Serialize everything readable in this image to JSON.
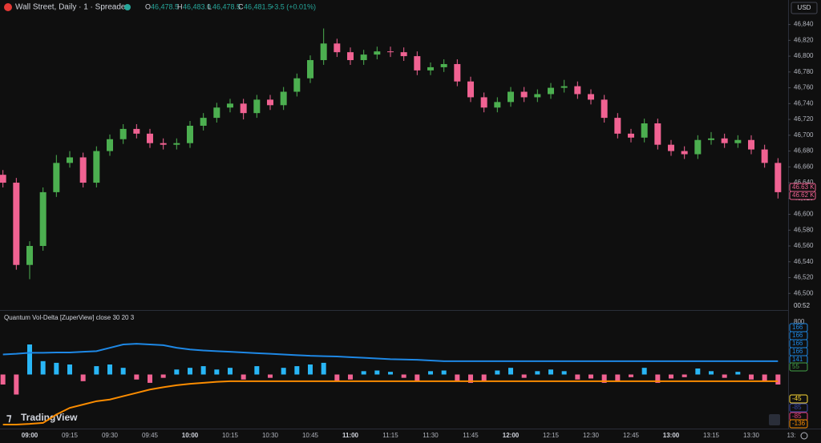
{
  "header": {
    "symbol": "Wall Street, Daily · 1 · Spreadex",
    "o_label": "O",
    "o": "46,478.5",
    "h_label": "H",
    "h": "46,483.0",
    "l_label": "L",
    "l": "46,478.5",
    "c_label": "C",
    "c": "46,481.5",
    "change": "+3.5 (+0.01%)"
  },
  "currency": "USD",
  "countdown": "00:52",
  "brand": "TradingView",
  "price_badges": [
    "46.63 K",
    "46.62 K"
  ],
  "indicator_title": "Quantum Vol-Delta [ZuperView] close 30 20 3",
  "chart_data": [
    {
      "type": "candlestick",
      "up_color": "#4caf50",
      "down_color": "#f06292",
      "ylim": [
        46479,
        46871
      ],
      "yticks": [
        {
          "value": 46840,
          "label": "46,840"
        },
        {
          "value": 46820,
          "label": "46,820"
        },
        {
          "value": 46800,
          "label": "46,800"
        },
        {
          "value": 46780,
          "label": "46,780"
        },
        {
          "value": 46760,
          "label": "46,760"
        },
        {
          "value": 46740,
          "label": "46,740"
        },
        {
          "value": 46720,
          "label": "46,720"
        },
        {
          "value": 46700,
          "label": "46,700"
        },
        {
          "value": 46680,
          "label": "46,680"
        },
        {
          "value": 46660,
          "label": "46,660"
        },
        {
          "value": 46640,
          "label": "46,640"
        },
        {
          "value": 46620,
          "label": "46,620"
        },
        {
          "value": 46600,
          "label": "46,600"
        },
        {
          "value": 46580,
          "label": "46,580"
        },
        {
          "value": 46560,
          "label": "46,560"
        },
        {
          "value": 46540,
          "label": "46,540"
        },
        {
          "value": 46520,
          "label": "46,520"
        },
        {
          "value": 46500,
          "label": "46,500"
        }
      ],
      "xticks": [
        "09:00",
        "09:15",
        "09:30",
        "09:45",
        "10:00",
        "10:15",
        "10:30",
        "10:45",
        "11:00",
        "11:15",
        "11:30",
        "11:45",
        "12:00",
        "12:15",
        "12:30",
        "12:45",
        "13:00",
        "13:15",
        "13:30",
        "13:"
      ],
      "open": [
        46650,
        46640,
        46536,
        46560,
        46628,
        46665,
        46672,
        46640,
        46680,
        46695,
        46708,
        46702,
        46690,
        46688,
        46690,
        46712,
        46722,
        46735,
        46740,
        46728,
        46745,
        46738,
        46755,
        46772,
        46795,
        46816,
        46805,
        46795,
        46802,
        46806,
        46805,
        46800,
        46782,
        46786,
        46790,
        46768,
        46748,
        46735,
        46742,
        46755,
        46748,
        46752,
        46760,
        46762,
        46752,
        46745,
        46722,
        46702,
        46697,
        46715,
        46688,
        46680,
        46676,
        46694,
        46696,
        46690,
        46694,
        46682,
        46665
      ],
      "high": [
        46656,
        46646,
        46566,
        46634,
        46675,
        46680,
        46678,
        46686,
        46701,
        46714,
        46714,
        46708,
        46696,
        46696,
        46718,
        46728,
        46741,
        46746,
        46746,
        46751,
        46751,
        46761,
        46778,
        46801,
        46835,
        46822,
        46811,
        46808,
        46812,
        46812,
        46811,
        46806,
        46792,
        46796,
        46796,
        46774,
        46754,
        46748,
        46761,
        46761,
        46758,
        46766,
        46770,
        46768,
        46758,
        46751,
        46728,
        46708,
        46721,
        46721,
        46694,
        46686,
        46700,
        46704,
        46702,
        46700,
        46700,
        46688,
        46671
      ],
      "low": [
        46634,
        46530,
        46518,
        46554,
        46622,
        46659,
        46634,
        46634,
        46674,
        46689,
        46696,
        46684,
        46682,
        46682,
        46684,
        46706,
        46716,
        46729,
        46720,
        46722,
        46732,
        46732,
        46749,
        46766,
        46789,
        46799,
        46789,
        46789,
        46796,
        46799,
        46794,
        46776,
        46776,
        46780,
        46762,
        46742,
        46729,
        46729,
        46736,
        46742,
        46742,
        46746,
        46754,
        46746,
        46739,
        46716,
        46696,
        46691,
        46691,
        46682,
        46674,
        46670,
        46670,
        46688,
        46684,
        46684,
        46676,
        46659,
        46620
      ],
      "close": [
        46640,
        46536,
        46560,
        46628,
        46665,
        46672,
        46640,
        46680,
        46695,
        46708,
        46702,
        46690,
        46688,
        46690,
        46712,
        46722,
        46735,
        46740,
        46728,
        46745,
        46738,
        46755,
        46772,
        46795,
        46816,
        46805,
        46795,
        46802,
        46806,
        46805,
        46800,
        46782,
        46786,
        46790,
        46768,
        46748,
        46735,
        46742,
        46755,
        46748,
        46752,
        46760,
        46762,
        46752,
        46745,
        46722,
        46702,
        46697,
        46715,
        46688,
        46680,
        46676,
        46694,
        46696,
        46690,
        46694,
        46682,
        46665,
        46628
      ]
    },
    {
      "type": "histogram-bands",
      "ylim": [
        -150,
        150
      ],
      "axis_top_label": 800,
      "pos_color": "#29b6f6",
      "neg_color": "#f06292",
      "series": [
        {
          "kind": "bars",
          "values": [
            -30,
            -60,
            90,
            40,
            35,
            30,
            -20,
            25,
            30,
            20,
            -15,
            -25,
            -10,
            15,
            20,
            25,
            15,
            20,
            -15,
            25,
            -10,
            20,
            25,
            30,
            35,
            -20,
            -15,
            10,
            12,
            8,
            -10,
            -20,
            10,
            12,
            -20,
            -25,
            -18,
            12,
            20,
            -10,
            10,
            15,
            10,
            -15,
            -12,
            -25,
            -22,
            -8,
            20,
            -25,
            -12,
            -8,
            18,
            10,
            -10,
            8,
            -15,
            -20,
            -30
          ]
        },
        {
          "kind": "line",
          "color": "#1e88e5",
          "values": [
            60,
            62,
            65,
            65,
            66,
            66,
            68,
            70,
            80,
            90,
            92,
            90,
            88,
            80,
            75,
            72,
            70,
            68,
            66,
            64,
            62,
            60,
            58,
            56,
            55,
            54,
            52,
            50,
            48,
            46,
            45,
            44,
            42,
            40,
            40,
            40,
            40,
            40,
            40,
            40,
            40,
            40,
            40,
            40,
            40,
            40,
            40,
            40,
            40,
            40,
            40,
            40,
            40,
            40,
            40,
            40,
            40,
            40,
            40
          ]
        },
        {
          "kind": "line",
          "color": "#fb8c00",
          "values": [
            -150,
            -150,
            -148,
            -145,
            -120,
            -100,
            -90,
            -80,
            -75,
            -65,
            -55,
            -45,
            -38,
            -32,
            -28,
            -25,
            -22,
            -20,
            -20,
            -20,
            -20,
            -20,
            -20,
            -20,
            -20,
            -20,
            -20,
            -20,
            -20,
            -20,
            -20,
            -20,
            -20,
            -20,
            -20,
            -20,
            -20,
            -20,
            -20,
            -20,
            -20,
            -20,
            -20,
            -20,
            -20,
            -20,
            -20,
            -20,
            -20,
            -20,
            -20,
            -20,
            -20,
            -20,
            -20,
            -20,
            -20,
            -20,
            -20
          ]
        }
      ],
      "badges": [
        {
          "value": 166,
          "color": "#1e88e5"
        },
        {
          "value": 166,
          "color": "#1e88e5"
        },
        {
          "value": 166,
          "color": "#1e88e5"
        },
        {
          "value": 166,
          "color": "#1e88e5"
        },
        {
          "value": 141,
          "color": "#1e88e5"
        },
        {
          "value": 55,
          "color": "#43a047"
        },
        {
          "value": -45,
          "color": "#fdd835"
        },
        {
          "value": -85,
          "color": "#3949ab"
        },
        {
          "value": -85,
          "color": "#ec407a"
        },
        {
          "value": -136,
          "color": "#fb8c00"
        }
      ]
    }
  ]
}
